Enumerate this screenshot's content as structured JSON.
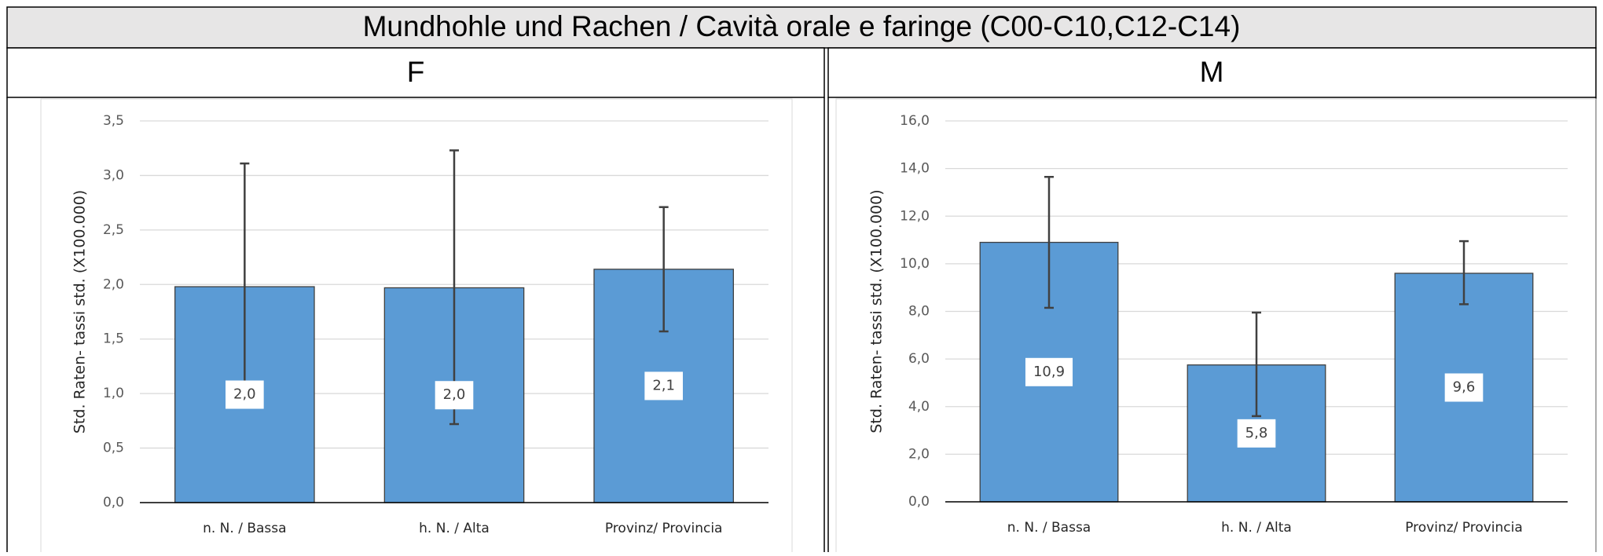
{
  "title": "Mundhohle und Rachen / Cavità orale e faringe (C00-C10,C12-C14)",
  "chart_data": [
    {
      "type": "bar",
      "title": "F",
      "ylabel": "Std. Raten- tassi std. (X100.000)",
      "categories": [
        "n. N. / Bassa",
        "h. N. / Alta",
        "Provinz/ Provincia"
      ],
      "values": [
        1.98,
        1.97,
        2.14
      ],
      "value_labels": [
        "2,0",
        "2,0",
        "2,1"
      ],
      "ci_low": [
        1.1,
        0.72,
        1.57
      ],
      "ci_high": [
        3.11,
        3.23,
        2.71
      ],
      "color": "#5b9bd5",
      "grid": true,
      "ylim": [
        0,
        3.5
      ],
      "yticks": [
        {
          "value": 0,
          "label": "0,0"
        },
        {
          "value": 0.5,
          "label": "0,5"
        },
        {
          "value": 1,
          "label": "1,0"
        },
        {
          "value": 1.5,
          "label": "1,5"
        },
        {
          "value": 2,
          "label": "2,0"
        },
        {
          "value": 2.5,
          "label": "2,5"
        },
        {
          "value": 3,
          "label": "3,0"
        },
        {
          "value": 3.5,
          "label": "3,5"
        }
      ]
    },
    {
      "type": "bar",
      "title": "M",
      "ylabel": "Std. Raten- tassi std. (X100.000)",
      "categories": [
        "n. N. / Bassa",
        "h. N. / Alta",
        "Provinz/ Provincia"
      ],
      "values": [
        10.9,
        5.75,
        9.6
      ],
      "value_labels": [
        "10,9",
        "5,8",
        "9,6"
      ],
      "ci_low": [
        8.15,
        3.6,
        8.3
      ],
      "ci_high": [
        13.65,
        7.95,
        10.95
      ],
      "color": "#5b9bd5",
      "grid": true,
      "ylim": [
        0,
        16
      ],
      "yticks": [
        {
          "value": 0,
          "label": "0,0"
        },
        {
          "value": 2,
          "label": "2,0"
        },
        {
          "value": 4,
          "label": "4,0"
        },
        {
          "value": 6,
          "label": "6,0"
        },
        {
          "value": 8,
          "label": "8,0"
        },
        {
          "value": 10,
          "label": "10,0"
        },
        {
          "value": 12,
          "label": "12,0"
        },
        {
          "value": 14,
          "label": "14,0"
        },
        {
          "value": 16,
          "label": "16,0"
        }
      ]
    }
  ]
}
